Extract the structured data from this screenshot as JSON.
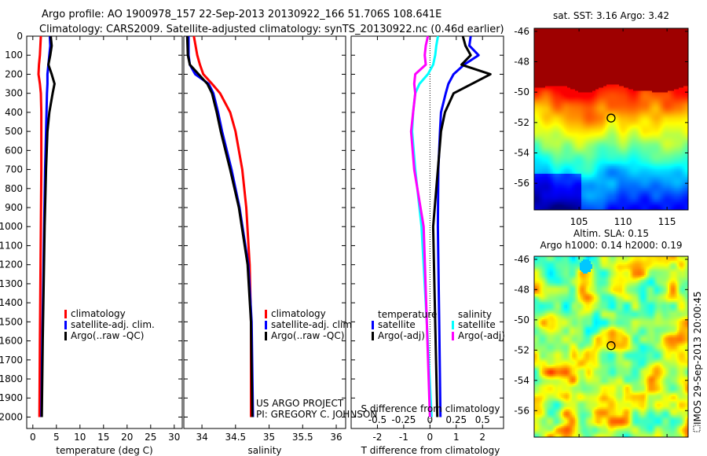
{
  "header": {
    "line1": "Argo profile: AO 1900978_157 22-Sep-2013 20130922_166 51.706S 108.641E",
    "line2": "Climatology: CARS2009. Satellite-adjusted climatology: synTS_20130922.nc (0.46d earlier)"
  },
  "credit": {
    "line1": "US ARGO PROJECT",
    "line2": "PI: GREGORY C. JOHNSON"
  },
  "stamp": "IMOS 29-Sep-2013 20:00:45",
  "colors": {
    "climatology": "#ff0000",
    "satellite": "#0000ff",
    "argo": "#000000",
    "sal_satellite": "#00ffff",
    "sal_argo": "#ff00ff"
  },
  "chart_data": [
    {
      "type": "line",
      "title": "",
      "xlabel": "temperature (deg C)",
      "ylabel": "",
      "xlim": [
        -1.3,
        31.7
      ],
      "ylim": [
        2060,
        0
      ],
      "xticks": [
        0,
        5,
        10,
        15,
        20,
        25,
        30
      ],
      "yticks": [
        0,
        100,
        200,
        300,
        400,
        500,
        600,
        700,
        800,
        900,
        1000,
        1100,
        1200,
        1300,
        1400,
        1500,
        1600,
        1700,
        1800,
        1900,
        2000
      ],
      "legend": [
        "climatology",
        "satellite-adj. clim.",
        "Argo(..raw -QC)"
      ],
      "legend_placement": "lower-left",
      "depth": [
        0,
        50,
        100,
        150,
        200,
        250,
        300,
        400,
        500,
        700,
        1000,
        1300,
        1600,
        2000
      ],
      "series": [
        {
          "name": "climatology",
          "values": [
            1.7,
            1.6,
            1.5,
            1.3,
            1.2,
            1.5,
            1.7,
            1.8,
            1.8,
            1.8,
            1.7,
            1.6,
            1.5,
            1.4
          ]
        },
        {
          "name": "satellite-adj. clim.",
          "values": [
            3.6,
            3.7,
            3.5,
            3.3,
            3.1,
            3.1,
            3.0,
            2.9,
            2.8,
            2.6,
            2.4,
            2.2,
            2.0,
            1.8
          ]
        },
        {
          "name": "Argo(..raw -QC)",
          "values": [
            3.8,
            4.0,
            3.7,
            3.3,
            4.0,
            4.6,
            4.2,
            3.5,
            3.1,
            2.8,
            2.5,
            2.3,
            2.1,
            1.9
          ]
        }
      ]
    },
    {
      "type": "line",
      "xlabel": "salinity",
      "xlim": [
        33.73,
        36.14
      ],
      "ylim": [
        2060,
        0
      ],
      "xticks": [
        34,
        34.5,
        35,
        35.5,
        36
      ],
      "legend": [
        "climatology",
        "satellite-adj. clim.",
        "Argo(..raw -QC)"
      ],
      "legend_placement": "lower-right",
      "depth": [
        0,
        100,
        150,
        200,
        250,
        300,
        400,
        500,
        700,
        900,
        1200,
        1500,
        2000
      ],
      "series": [
        {
          "name": "climatology",
          "values": [
            33.88,
            33.93,
            33.97,
            34.02,
            34.15,
            34.27,
            34.42,
            34.5,
            34.6,
            34.66,
            34.71,
            34.73,
            34.73
          ]
        },
        {
          "name": "satellite-adj. clim.",
          "values": [
            33.8,
            33.8,
            33.82,
            33.9,
            34.1,
            34.17,
            34.24,
            34.3,
            34.44,
            34.56,
            34.69,
            34.74,
            34.76
          ]
        },
        {
          "name": "Argo(..raw -QC)",
          "values": [
            33.78,
            33.79,
            33.82,
            33.95,
            34.08,
            34.15,
            34.22,
            34.28,
            34.42,
            34.55,
            34.68,
            34.73,
            34.75
          ]
        }
      ]
    },
    {
      "type": "line",
      "xlabel": "T difference from climatology",
      "xlabel2": "S difference from climatology",
      "xlim": [
        -3.0,
        2.8
      ],
      "xlim2": [
        -0.75,
        0.7
      ],
      "ylim": [
        2060,
        0
      ],
      "xticks": [
        -2,
        -1,
        0,
        1,
        2
      ],
      "xticks2": [
        -0.5,
        -0.25,
        0,
        0.25,
        0.5
      ],
      "legend_groups": {
        "temperature": [
          "satellite",
          "Argo(-adj)"
        ],
        "salinity": [
          "satellite",
          "Argo(-adj)"
        ]
      },
      "depth": [
        0,
        50,
        100,
        150,
        200,
        250,
        300,
        400,
        500,
        700,
        1000,
        1500,
        2000
      ],
      "series": [
        {
          "name": "temperature satellite",
          "axis": "T",
          "values": [
            1.55,
            1.5,
            1.85,
            1.3,
            0.9,
            0.7,
            0.6,
            0.42,
            0.38,
            0.32,
            0.3,
            0.35,
            0.4
          ]
        },
        {
          "name": "temperature Argo(-adj)",
          "axis": "T",
          "values": [
            1.25,
            1.35,
            1.55,
            1.2,
            2.3,
            1.6,
            0.9,
            0.57,
            0.42,
            0.3,
            0.12,
            0.2,
            0.28
          ]
        },
        {
          "name": "salinity satellite",
          "axis": "S",
          "values": [
            0.076,
            0.06,
            0.05,
            0.03,
            -0.02,
            -0.1,
            -0.14,
            -0.16,
            -0.17,
            -0.14,
            -0.08,
            -0.03,
            0.015
          ]
        },
        {
          "name": "salinity Argo(-adj)",
          "axis": "S",
          "values": [
            -0.02,
            -0.04,
            -0.05,
            -0.04,
            -0.14,
            -0.15,
            -0.14,
            -0.16,
            -0.18,
            -0.15,
            -0.06,
            -0.03,
            0.0
          ]
        }
      ]
    },
    {
      "type": "heatmap",
      "title": "sat. SST: 3.16 Argo: 3.42",
      "xlim": [
        99.9,
        117.4
      ],
      "ylim": [
        -57.75,
        -45.8
      ],
      "xticks": [
        105,
        110,
        115
      ],
      "yticks": [
        -46,
        -48,
        -50,
        -52,
        -54,
        -56
      ],
      "marker": {
        "lon": 108.641,
        "lat": -51.706
      }
    },
    {
      "type": "heatmap",
      "title": "Altim. SLA: 0.15",
      "subtitle": "Argo h1000: 0.14 h2000: 0.19",
      "xlim": [
        99.9,
        117.4
      ],
      "ylim": [
        -57.75,
        -45.8
      ],
      "xticks": [
        105,
        110,
        115
      ],
      "yticks": [
        -46,
        -48,
        -50,
        -52,
        -54,
        -56
      ],
      "marker": {
        "lon": 108.641,
        "lat": -51.706
      }
    }
  ]
}
